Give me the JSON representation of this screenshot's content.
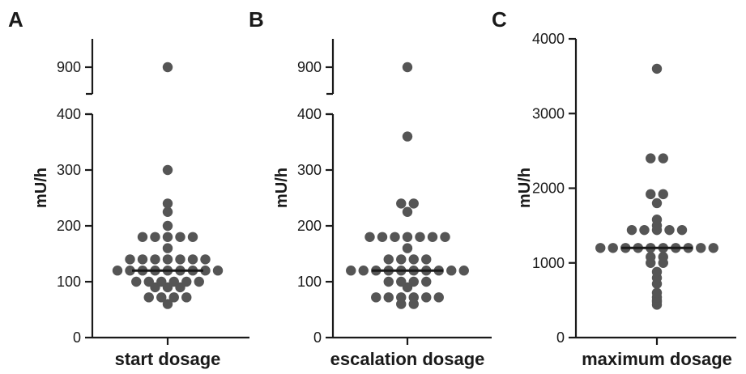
{
  "chart_data": [
    {
      "type": "scatter",
      "panel": "A",
      "category": "start dosage",
      "ylabel": "mU/h",
      "ylim": [
        0,
        400
      ],
      "yticks": [
        "0",
        "100",
        "200",
        "300",
        "400"
      ],
      "axis_break": true,
      "break_ticks": [
        "900"
      ],
      "median": 120,
      "color": "#555555",
      "values": [
        900,
        300,
        240,
        225,
        200,
        180,
        180,
        180,
        180,
        180,
        160,
        140,
        140,
        140,
        140,
        140,
        140,
        140,
        120,
        120,
        120,
        120,
        120,
        120,
        120,
        120,
        120,
        100,
        100,
        100,
        100,
        100,
        100,
        90,
        90,
        90,
        72,
        72,
        72,
        72,
        60
      ]
    },
    {
      "type": "scatter",
      "panel": "B",
      "category": "escalation dosage",
      "ylabel": "mU/h",
      "ylim": [
        0,
        400
      ],
      "yticks": [
        "0",
        "100",
        "200",
        "300",
        "400"
      ],
      "axis_break": true,
      "break_ticks": [
        "900"
      ],
      "median": 120,
      "color": "#555555",
      "values": [
        900,
        360,
        240,
        240,
        225,
        180,
        180,
        180,
        180,
        180,
        180,
        180,
        160,
        140,
        140,
        140,
        140,
        120,
        120,
        120,
        120,
        120,
        120,
        120,
        120,
        120,
        120,
        100,
        100,
        100,
        100,
        90,
        72,
        72,
        72,
        72,
        72,
        72,
        60,
        60
      ]
    },
    {
      "type": "scatter",
      "panel": "C",
      "category": "maximum dosage",
      "ylabel": "mU/h",
      "ylim": [
        0,
        4000
      ],
      "yticks": [
        "0",
        "1000",
        "2000",
        "3000",
        "4000"
      ],
      "axis_break": false,
      "median": 1200,
      "color": "#555555",
      "values": [
        3600,
        2400,
        2400,
        1920,
        1920,
        1800,
        1580,
        1500,
        1440,
        1440,
        1440,
        1440,
        1440,
        1200,
        1200,
        1200,
        1200,
        1200,
        1200,
        1200,
        1200,
        1200,
        1200,
        1080,
        1080,
        1000,
        1000,
        880,
        800,
        720,
        600,
        540,
        500,
        480,
        440
      ]
    }
  ]
}
